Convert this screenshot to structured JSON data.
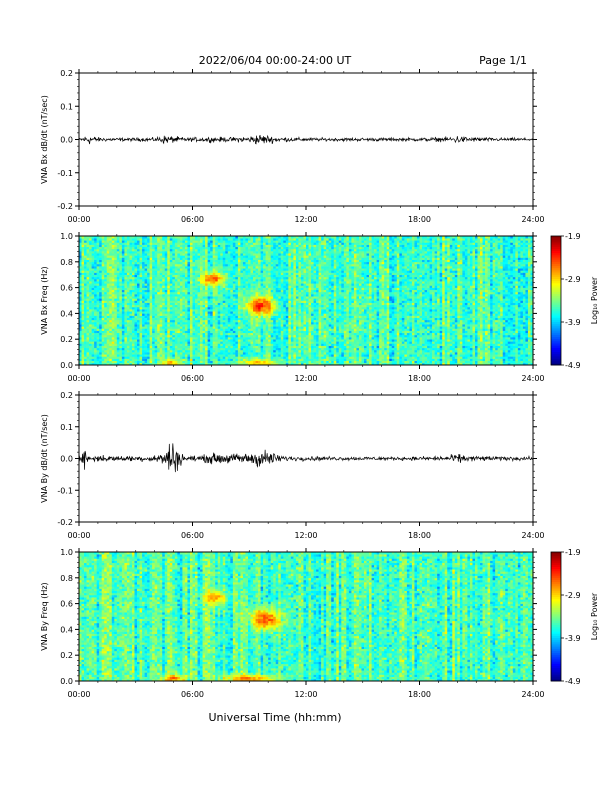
{
  "header": {
    "title": "2022/06/04  00:00-24:00 UT",
    "page": "Page 1/1"
  },
  "x_axis": {
    "ticks": [
      "00:00",
      "06:00",
      "12:00",
      "18:00",
      "24:00"
    ],
    "label": "Universal Time (hh:mm)"
  },
  "chart_data": [
    {
      "type": "line",
      "ylabel": "VNA Bx dB/dt (nT/sec)",
      "xlim": [
        0,
        24
      ],
      "ylim": [
        -0.2,
        0.2
      ],
      "yticks": [
        "0.2",
        "0.1",
        "0.0",
        "-0.1",
        "-0.2"
      ],
      "series": [
        {
          "amplitude_envelope": {
            "x_hours": [
              0,
              0.5,
              1,
              2,
              3,
              4,
              4.5,
              5,
              5.5,
              6,
              7,
              8,
              9,
              9.5,
              10,
              10.5,
              11,
              12,
              14,
              16,
              18,
              19.5,
              20,
              20.5,
              21,
              22,
              24
            ],
            "amp": [
              0.004,
              0.02,
              0.008,
              0.006,
              0.006,
              0.007,
              0.015,
              0.012,
              0.008,
              0.007,
              0.01,
              0.008,
              0.012,
              0.02,
              0.015,
              0.01,
              0.008,
              0.006,
              0.006,
              0.006,
              0.006,
              0.009,
              0.015,
              0.01,
              0.008,
              0.006,
              0.005
            ]
          }
        }
      ]
    },
    {
      "type": "heatmap",
      "ylabel": "VNA Bx Freq (Hz)",
      "xlim": [
        0,
        24
      ],
      "ylim": [
        0,
        1.0
      ],
      "yticks": [
        "1.0",
        "0.8",
        "0.6",
        "0.4",
        "0.2",
        "0.0"
      ],
      "colorbar": {
        "label": "Log₁₀ Power",
        "ticks": [
          "-1.9",
          "-2.9",
          "-3.9",
          "-4.9"
        ],
        "range": [
          -4.9,
          -1.9
        ]
      },
      "features": [
        {
          "t_hours": 7.1,
          "f_hz": 0.67,
          "spread_t": 0.6,
          "spread_f": 0.05,
          "peak": -2.3
        },
        {
          "t_hours": 9.6,
          "f_hz": 0.46,
          "spread_t": 0.7,
          "spread_f": 0.07,
          "peak": -2.1
        },
        {
          "t_hours": 4.8,
          "f_hz": 0.02,
          "spread_t": 0.4,
          "spread_f": 0.03,
          "peak": -2.6
        },
        {
          "t_hours": 9.5,
          "f_hz": 0.02,
          "spread_t": 1.0,
          "spread_f": 0.03,
          "peak": -2.7
        }
      ]
    },
    {
      "type": "line",
      "ylabel": "VNA By dB/dt (nT/sec)",
      "xlim": [
        0,
        24
      ],
      "ylim": [
        -0.2,
        0.2
      ],
      "yticks": [
        "0.2",
        "0.1",
        "0.0",
        "-0.1",
        "-0.2"
      ],
      "series": [
        {
          "amplitude_envelope": {
            "x_hours": [
              0,
              0.3,
              0.6,
              1,
              2,
              3,
              4,
              4.5,
              4.7,
              5,
              5.3,
              5.6,
              6,
              6.5,
              7,
              7.5,
              8,
              9,
              9.5,
              10,
              10.5,
              11,
              12,
              14,
              16,
              18,
              19.5,
              20,
              20.5,
              21,
              22,
              24
            ],
            "amp": [
              0.006,
              0.04,
              0.015,
              0.012,
              0.01,
              0.01,
              0.012,
              0.025,
              0.06,
              0.07,
              0.03,
              0.012,
              0.01,
              0.012,
              0.02,
              0.02,
              0.018,
              0.02,
              0.035,
              0.03,
              0.015,
              0.01,
              0.008,
              0.007,
              0.007,
              0.007,
              0.01,
              0.018,
              0.012,
              0.01,
              0.008,
              0.007
            ]
          }
        }
      ]
    },
    {
      "type": "heatmap",
      "ylabel": "VNA By Freq (Hz)",
      "xlim": [
        0,
        24
      ],
      "ylim": [
        0,
        1.0
      ],
      "yticks": [
        "1.0",
        "0.8",
        "0.6",
        "0.4",
        "0.2",
        "0.0"
      ],
      "colorbar": {
        "label": "Log₁₀ Power",
        "ticks": [
          "-1.9",
          "-2.9",
          "-3.9",
          "-4.9"
        ],
        "range": [
          -4.9,
          -1.9
        ]
      },
      "features": [
        {
          "t_hours": 7.2,
          "f_hz": 0.65,
          "spread_t": 0.6,
          "spread_f": 0.06,
          "peak": -2.6
        },
        {
          "t_hours": 9.9,
          "f_hz": 0.48,
          "spread_t": 0.8,
          "spread_f": 0.08,
          "peak": -2.3
        },
        {
          "t_hours": 5.0,
          "f_hz": 0.02,
          "spread_t": 0.6,
          "spread_f": 0.03,
          "peak": -2.4
        },
        {
          "t_hours": 9.0,
          "f_hz": 0.02,
          "spread_t": 1.5,
          "spread_f": 0.03,
          "peak": -2.5
        }
      ]
    }
  ]
}
